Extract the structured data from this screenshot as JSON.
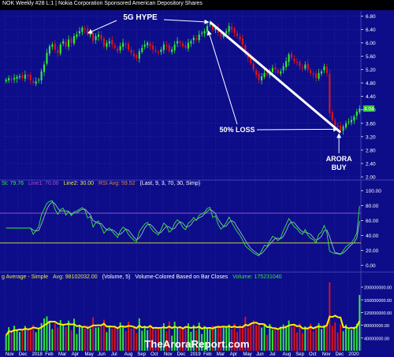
{
  "header": {
    "title": "NOK Weekly #28 L:1 | Nokia Corporation Sponsored American Depository Shares"
  },
  "indicator_info": {
    "rsi": {
      "st_label": "St: 79.76",
      "line1_label": "Line1: 70.00",
      "line2_label": "Line2: 30.00",
      "avg_label": "RSI Avg: 59.52",
      "params": "(Last, 9, 3, 70, 30, Simp)"
    },
    "volume": {
      "ma_label": "g Average - Simple",
      "avg_label": "Avg: 98102032.00",
      "params": "(Volume, 5)",
      "colored_label": "Volume-Colored Based on Bar Closes",
      "volume_label": "Volume: 175231040"
    }
  },
  "annotations": {
    "hype": "5G HYPE",
    "loss": "50% LOSS",
    "buy_line1": "ARORA",
    "buy_line2": "BUY",
    "last_price": "4.04"
  },
  "watermark": "TheAroraReport.com",
  "colors": {
    "background": "#0d0d8a",
    "up_candle": "#33ee33",
    "down_candle": "#e01515",
    "rsi_line": "#33ee33",
    "rsi_avg": "#a0b8c8",
    "overbought_line": "#b050d0",
    "oversold_line": "#e8e840",
    "volume_ma": "#ffee00",
    "annotation_arrow": "#ffffff"
  },
  "chart_data": [
    {
      "type": "candlestick",
      "panel": "price",
      "y_axis_ticks": [
        "6.80",
        "6.40",
        "6.00",
        "5.60",
        "5.20",
        "4.80",
        "4.40",
        "4.00",
        "3.60",
        "3.20",
        "2.80",
        "2.40",
        "2.00"
      ],
      "ylim": [
        2.0,
        6.95
      ],
      "x_ticks": [
        "Nov",
        "Dec",
        "2018",
        "Feb",
        "Mar",
        "Apr",
        "May",
        "Jun",
        "Jul",
        "Aug",
        "Sep",
        "Oct",
        "Nov",
        "Dec",
        "2019",
        "Feb",
        "Mar",
        "Apr",
        "May",
        "Jun",
        "Jul",
        "Aug",
        "Sep",
        "Oct",
        "Nov",
        "Dec",
        "2020"
      ],
      "closes": [
        4.9,
        4.95,
        4.88,
        4.95,
        4.99,
        5.0,
        4.95,
        5.05,
        5.02,
        4.88,
        4.8,
        4.85,
        4.9,
        5.15,
        5.35,
        5.7,
        5.9,
        5.95,
        5.8,
        5.7,
        5.95,
        6.05,
        5.9,
        6.1,
        6.0,
        6.2,
        6.25,
        6.35,
        6.45,
        6.4,
        6.25,
        6.3,
        6.05,
        6.2,
        6.25,
        6.1,
        5.9,
        6.0,
        6.05,
        5.95,
        5.85,
        5.75,
        5.9,
        6.0,
        5.95,
        5.8,
        5.7,
        5.6,
        5.55,
        5.75,
        5.85,
        5.95,
        6.0,
        5.9,
        5.8,
        5.75,
        5.7,
        5.8,
        5.95,
        5.9,
        5.75,
        5.8,
        5.95,
        6.05,
        6.0,
        5.9,
        5.85,
        6.0,
        6.05,
        6.15,
        6.1,
        6.25,
        6.3,
        6.35,
        6.5,
        6.55,
        6.4,
        6.45,
        6.3,
        6.2,
        6.25,
        6.35,
        6.5,
        6.4,
        6.3,
        6.2,
        6.1,
        5.95,
        5.7,
        5.55,
        5.4,
        5.2,
        5.05,
        4.9,
        5.0,
        5.1,
        5.05,
        5.15,
        5.25,
        5.2,
        5.1,
        5.15,
        5.3,
        5.45,
        5.65,
        5.55,
        5.45,
        5.4,
        5.3,
        5.25,
        5.35,
        5.2,
        5.1,
        5.05,
        4.95,
        5.1,
        5.15,
        5.3,
        5.1,
        3.9,
        3.7,
        3.55,
        3.5,
        3.4,
        3.5,
        3.6,
        3.65,
        3.7,
        3.8,
        3.95,
        4.04
      ],
      "last_price": 4.04
    },
    {
      "type": "line",
      "panel": "rsi",
      "y_axis_ticks": [
        "100.00",
        "80.00",
        "60.00",
        "40.00",
        "20.00",
        "0.00"
      ],
      "ylim": [
        -5,
        105
      ],
      "series": [
        {
          "name": "St",
          "last": 79.76
        },
        {
          "name": "RSI Avg",
          "last": 59.52
        }
      ],
      "line1": 70.0,
      "line2": 30.0
    },
    {
      "type": "bar",
      "panel": "volume",
      "y_axis_ticks": [
        "200000000.00",
        "160000000.00",
        "120000000.00",
        "80000000.00",
        "40000000.00"
      ],
      "ylim": [
        0,
        220000000
      ],
      "series": [
        {
          "name": "Volume",
          "last": 175231040
        },
        {
          "name": "Average",
          "last": 98102032
        }
      ]
    }
  ]
}
